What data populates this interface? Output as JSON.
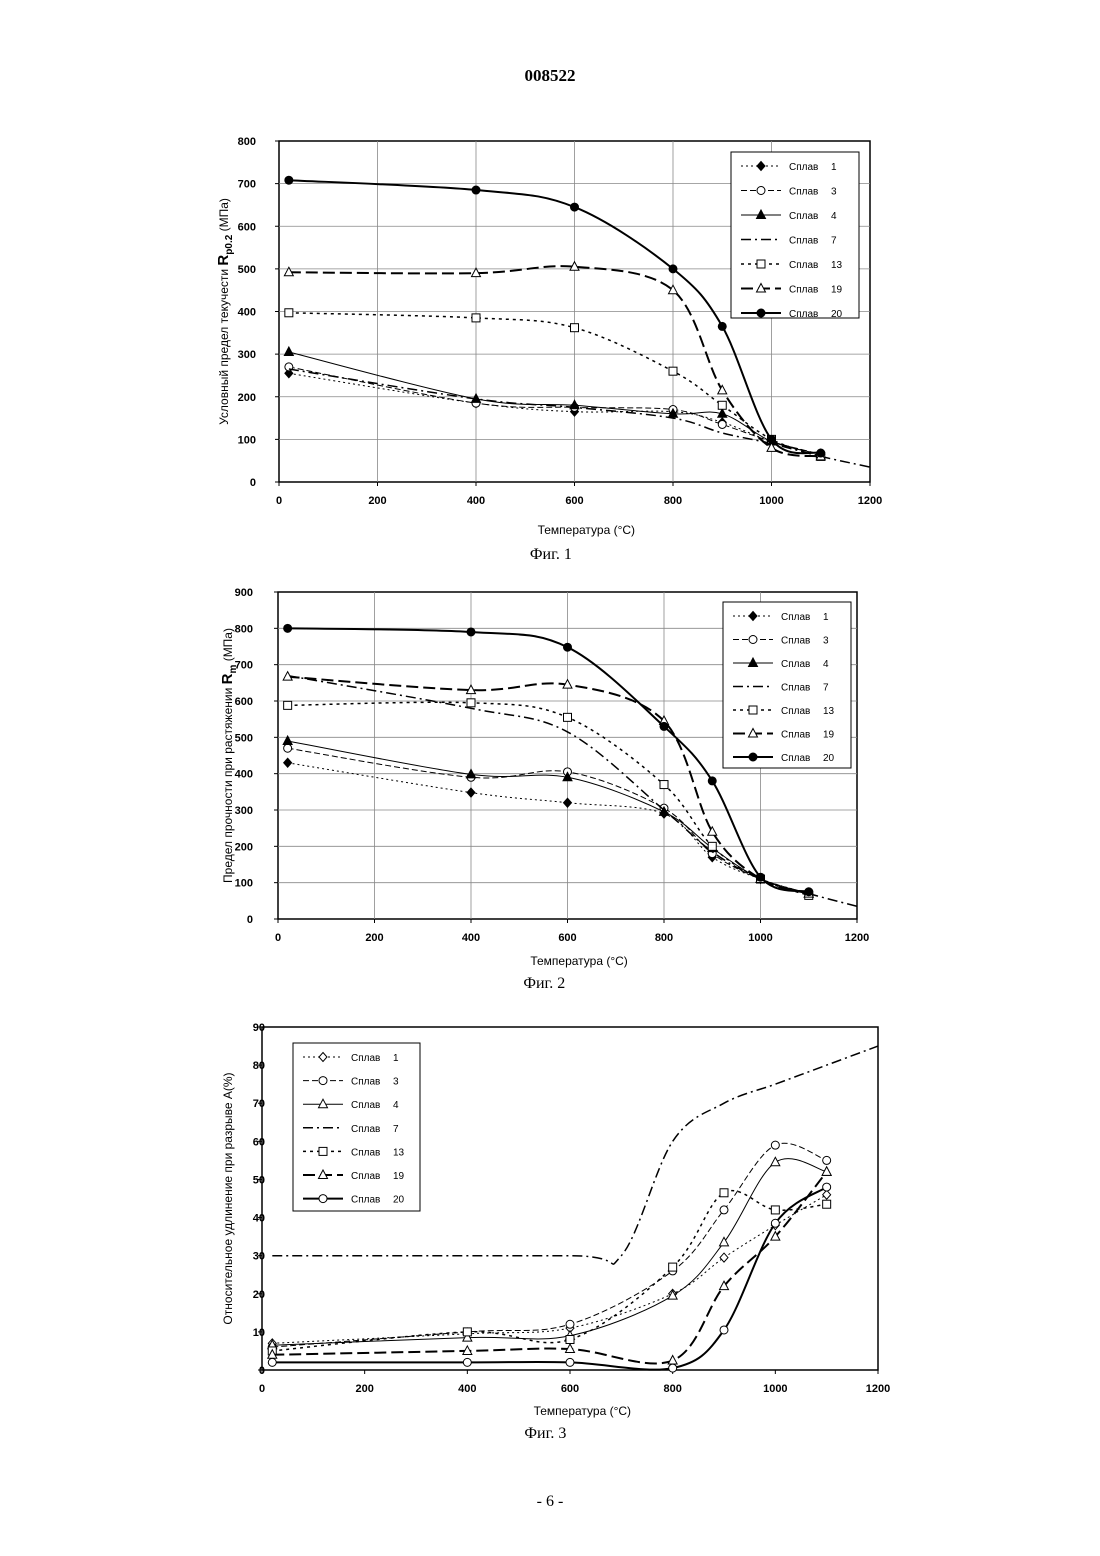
{
  "page": {
    "number": "008522",
    "footer": "- 6 -"
  },
  "chart_data": [
    {
      "type": "line",
      "caption": "Фиг. 1",
      "xlabel": "Температура (°С)",
      "ylabel_prefix": "Условный предел текучести",
      "ylabel_symbol": "R",
      "ylabel_subscript": "p0.2",
      "ylabel_unit": "(МПа)",
      "xlim": [
        0,
        1200
      ],
      "ylim": [
        0,
        800
      ],
      "xticks": [
        0,
        200,
        400,
        600,
        800,
        1000,
        1200
      ],
      "yticks": [
        0,
        100,
        200,
        300,
        400,
        500,
        600,
        700,
        800
      ],
      "grid": true,
      "legend_position": "top-right",
      "series": [
        {
          "name": "Сплав",
          "number": "1",
          "marker": "diamond",
          "filled": true,
          "dash": "2,3",
          "width": 1,
          "x": [
            20,
            400,
            600,
            800,
            900,
            1000,
            1100
          ],
          "y": [
            255,
            185,
            165,
            165,
            140,
            95,
            65
          ]
        },
        {
          "name": "Сплав",
          "number": "3",
          "marker": "circle",
          "filled": false,
          "dash": "6,3",
          "width": 1,
          "x": [
            20,
            400,
            600,
            800,
            900,
            1000,
            1100
          ],
          "y": [
            270,
            185,
            175,
            170,
            135,
            95,
            65
          ]
        },
        {
          "name": "Сплав",
          "number": "4",
          "marker": "triangle",
          "filled": true,
          "dash": "",
          "width": 1,
          "x": [
            20,
            400,
            600,
            800,
            900,
            1000,
            1100
          ],
          "y": [
            305,
            195,
            180,
            160,
            160,
            95,
            65
          ]
        },
        {
          "name": "Сплав",
          "number": "7",
          "marker": "none",
          "filled": false,
          "dash": "10,4,2,4",
          "width": 1.5,
          "x": [
            20,
            400,
            600,
            800,
            900,
            1000,
            1100,
            1200
          ],
          "y": [
            265,
            195,
            175,
            150,
            115,
            90,
            60,
            35
          ]
        },
        {
          "name": "Сплав",
          "number": "13",
          "marker": "square",
          "filled": false,
          "dash": "3,4",
          "width": 1.5,
          "x": [
            20,
            400,
            600,
            800,
            900,
            1000,
            1100
          ],
          "y": [
            397,
            385,
            362,
            260,
            180,
            100,
            60
          ]
        },
        {
          "name": "Сплав",
          "number": "19",
          "marker": "triangle",
          "filled": false,
          "dash": "12,5",
          "width": 2,
          "x": [
            20,
            400,
            600,
            800,
            900,
            1000,
            1100
          ],
          "y": [
            492,
            490,
            505,
            450,
            215,
            80,
            60
          ]
        },
        {
          "name": "Сплав",
          "number": "20",
          "marker": "circle",
          "filled": true,
          "dash": "",
          "width": 2,
          "x": [
            20,
            400,
            600,
            800,
            900,
            1000,
            1100
          ],
          "y": [
            708,
            685,
            645,
            500,
            365,
            100,
            68
          ]
        }
      ]
    },
    {
      "type": "line",
      "caption": "Фиг. 2",
      "xlabel": "Температура (°С)",
      "ylabel_prefix": "Предел прочности при растяжении",
      "ylabel_symbol": "R",
      "ylabel_subscript": "m",
      "ylabel_unit": "(МПа)",
      "xlim": [
        0,
        1200
      ],
      "ylim": [
        0,
        900
      ],
      "xticks": [
        0,
        200,
        400,
        600,
        800,
        1000,
        1200
      ],
      "yticks": [
        0,
        100,
        200,
        300,
        400,
        500,
        600,
        700,
        800,
        900
      ],
      "grid": true,
      "legend_position": "top-right",
      "series": [
        {
          "name": "Сплав",
          "number": "1",
          "marker": "diamond",
          "filled": true,
          "dash": "2,3",
          "width": 1,
          "x": [
            20,
            400,
            600,
            800,
            900,
            1000,
            1100
          ],
          "y": [
            430,
            348,
            320,
            290,
            170,
            110,
            70
          ]
        },
        {
          "name": "Сплав",
          "number": "3",
          "marker": "circle",
          "filled": false,
          "dash": "6,3",
          "width": 1,
          "x": [
            20,
            400,
            600,
            800,
            900,
            1000,
            1100
          ],
          "y": [
            470,
            390,
            405,
            305,
            180,
            110,
            70
          ]
        },
        {
          "name": "Сплав",
          "number": "4",
          "marker": "triangle",
          "filled": true,
          "dash": "",
          "width": 1,
          "x": [
            20,
            400,
            600,
            800,
            900,
            1000,
            1100
          ],
          "y": [
            490,
            398,
            390,
            295,
            195,
            110,
            70
          ]
        },
        {
          "name": "Сплав",
          "number": "7",
          "marker": "none",
          "filled": false,
          "dash": "10,4,2,4",
          "width": 1.5,
          "x": [
            20,
            400,
            600,
            800,
            900,
            1000,
            1100,
            1200
          ],
          "y": [
            670,
            580,
            515,
            300,
            185,
            110,
            70,
            35
          ]
        },
        {
          "name": "Сплав",
          "number": "13",
          "marker": "square",
          "filled": false,
          "dash": "3,4",
          "width": 1.5,
          "x": [
            20,
            400,
            600,
            800,
            900,
            1000,
            1100
          ],
          "y": [
            588,
            595,
            555,
            370,
            200,
            110,
            65
          ]
        },
        {
          "name": "Сплав",
          "number": "19",
          "marker": "triangle",
          "filled": false,
          "dash": "12,5",
          "width": 2,
          "x": [
            20,
            400,
            600,
            800,
            900,
            1000,
            1100
          ],
          "y": [
            667,
            630,
            645,
            545,
            240,
            110,
            70
          ]
        },
        {
          "name": "Сплав",
          "number": "20",
          "marker": "circle",
          "filled": true,
          "dash": "",
          "width": 2,
          "x": [
            20,
            400,
            600,
            800,
            900,
            1000,
            1100
          ],
          "y": [
            800,
            790,
            748,
            530,
            380,
            115,
            75
          ]
        }
      ]
    },
    {
      "type": "line",
      "caption": "Фиг. 3",
      "xlabel": "Температура (°С)",
      "ylabel_prefix": "Относительное удлинение при разрыве А(%)",
      "ylabel_symbol": "",
      "ylabel_subscript": "",
      "ylabel_unit": "",
      "xlim": [
        0,
        1200
      ],
      "ylim": [
        0,
        90
      ],
      "xticks": [
        0,
        200,
        400,
        600,
        800,
        1000,
        1200
      ],
      "yticks": [
        0,
        10,
        20,
        30,
        40,
        50,
        60,
        70,
        80,
        90
      ],
      "grid": false,
      "legend_position": "top-left",
      "series": [
        {
          "name": "Сплав",
          "number": "1",
          "marker": "diamond",
          "filled": false,
          "dash": "2,3",
          "width": 1,
          "x": [
            20,
            400,
            600,
            800,
            900,
            1000,
            1100
          ],
          "y": [
            7,
            9.5,
            11,
            20,
            29.5,
            38,
            46
          ]
        },
        {
          "name": "Сплав",
          "number": "3",
          "marker": "circle",
          "filled": false,
          "dash": "6,3",
          "width": 1,
          "x": [
            20,
            400,
            600,
            800,
            900,
            1000,
            1100
          ],
          "y": [
            6,
            10,
            12,
            26,
            42,
            59,
            55
          ]
        },
        {
          "name": "Сплав",
          "number": "4",
          "marker": "triangle",
          "filled": false,
          "dash": "",
          "width": 1,
          "x": [
            20,
            400,
            600,
            800,
            900,
            1000,
            1100
          ],
          "y": [
            6.5,
            8.5,
            9,
            19.5,
            33.5,
            54.5,
            52
          ]
        },
        {
          "name": "Сплав",
          "number": "7",
          "marker": "none",
          "filled": false,
          "dash": "10,4,2,4",
          "width": 1.5,
          "x": [
            20,
            600,
            700,
            800,
            900,
            1000,
            1100,
            1200
          ],
          "y": [
            30,
            30,
            30,
            60,
            70,
            75,
            80,
            85
          ]
        },
        {
          "name": "Сплав",
          "number": "13",
          "marker": "square",
          "filled": false,
          "dash": "3,4",
          "width": 1.5,
          "x": [
            20,
            400,
            600,
            800,
            900,
            1000,
            1100
          ],
          "y": [
            5,
            10,
            8,
            27,
            46.5,
            42,
            43.5
          ]
        },
        {
          "name": "Сплав",
          "number": "19",
          "marker": "triangle",
          "filled": false,
          "dash": "12,5",
          "width": 2,
          "x": [
            20,
            400,
            600,
            800,
            900,
            1000,
            1100
          ],
          "y": [
            4,
            5,
            5.5,
            2.5,
            22,
            35,
            52
          ]
        },
        {
          "name": "Сплав",
          "number": "20",
          "marker": "circle",
          "filled": false,
          "dash": "",
          "width": 2,
          "x": [
            20,
            400,
            600,
            800,
            900,
            1000,
            1100
          ],
          "y": [
            2,
            2,
            2,
            0.5,
            10.5,
            38.5,
            48
          ]
        }
      ]
    }
  ]
}
